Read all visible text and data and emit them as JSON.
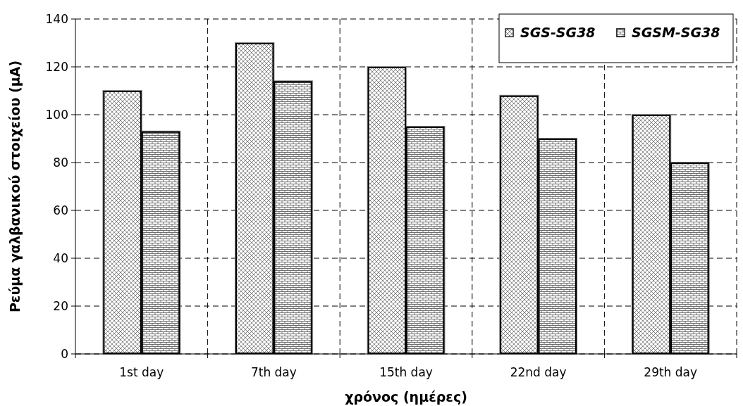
{
  "chart_data": {
    "type": "bar",
    "xlabel": "χρόνος (ημέρες)",
    "ylabel": "Ρεύμα γαλβανικού στοιχείου (μA)",
    "categories": [
      "1st day",
      "7th day",
      "15th day",
      "22nd day",
      "29th day"
    ],
    "series": [
      {
        "name": "SGS-SG38",
        "color": "#8c8c8c",
        "values": [
          110,
          130,
          120,
          108,
          100
        ]
      },
      {
        "name": "SGSM-SG38",
        "color": "#6e6e6e",
        "values": [
          93,
          114,
          95,
          90,
          80
        ]
      }
    ],
    "ylim": [
      0,
      140
    ],
    "yticks": [
      0,
      20,
      40,
      60,
      80,
      100,
      120,
      140
    ],
    "grid": true,
    "legend": "top right"
  }
}
